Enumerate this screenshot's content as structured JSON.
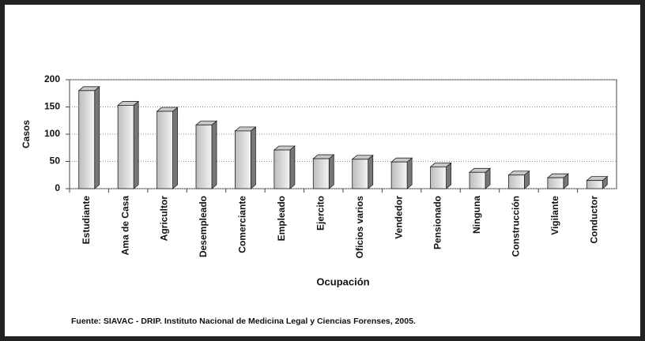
{
  "chart_data": {
    "type": "bar",
    "categories": [
      "Estudiante",
      "Ama de Casa",
      "Agricultor",
      "Desempleado",
      "Comerciante",
      "Empleado",
      "Ejercito",
      "Oficios varios",
      "Vendedor",
      "Pensionado",
      "Ninguna",
      "Construcción",
      "Vigilante",
      "Conductor"
    ],
    "values": [
      180,
      153,
      142,
      117,
      106,
      71,
      55,
      54,
      49,
      40,
      30,
      25,
      20,
      15
    ],
    "color": "#c8c8c8",
    "ylim": [
      0,
      200
    ],
    "yticks": [
      0,
      50,
      100,
      150,
      200
    ],
    "grid": true,
    "y_label": "Casos",
    "x_label": "Ocupación",
    "source": "Fuente: SIAVAC - DRIP. Instituto Nacional de Medicina Legal y Ciencias Forenses, 2005."
  }
}
